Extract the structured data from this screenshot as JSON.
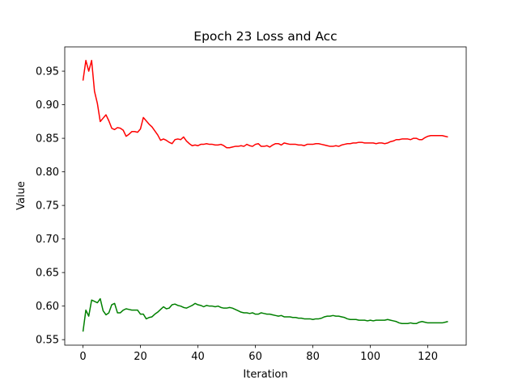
{
  "chart_data": {
    "type": "line",
    "title": "Epoch 23 Loss and Acc",
    "x_label": "Iteration",
    "y_label": "Value",
    "x": [
      0,
      1,
      2,
      3,
      4,
      5,
      6,
      7,
      8,
      9,
      10,
      11,
      12,
      13,
      14,
      15,
      16,
      17,
      18,
      19,
      20,
      21,
      22,
      23,
      24,
      25,
      26,
      27,
      28,
      29,
      30,
      31,
      32,
      33,
      34,
      35,
      36,
      37,
      38,
      39,
      40,
      41,
      42,
      43,
      44,
      45,
      46,
      47,
      48,
      49,
      50,
      51,
      52,
      53,
      54,
      55,
      56,
      57,
      58,
      59,
      60,
      61,
      62,
      63,
      64,
      65,
      66,
      67,
      68,
      69,
      70,
      71,
      72,
      73,
      74,
      75,
      76,
      77,
      78,
      79,
      80,
      81,
      82,
      83,
      84,
      85,
      86,
      87,
      88,
      89,
      90,
      91,
      92,
      93,
      94,
      95,
      96,
      97,
      98,
      99,
      100,
      101,
      102,
      103,
      104,
      105,
      106,
      107,
      108,
      109,
      110,
      111,
      112,
      113,
      114,
      115,
      116,
      117,
      118,
      119,
      120,
      121,
      122,
      123,
      124,
      125,
      126,
      127
    ],
    "series": [
      {
        "color": "#ff0000",
        "values": [
          0.936,
          0.966,
          0.95,
          0.966,
          0.92,
          0.902,
          0.875,
          0.88,
          0.885,
          0.876,
          0.865,
          0.863,
          0.866,
          0.865,
          0.862,
          0.853,
          0.856,
          0.86,
          0.86,
          0.859,
          0.864,
          0.881,
          0.876,
          0.871,
          0.867,
          0.861,
          0.855,
          0.847,
          0.849,
          0.847,
          0.844,
          0.842,
          0.848,
          0.849,
          0.848,
          0.852,
          0.846,
          0.842,
          0.839,
          0.84,
          0.839,
          0.841,
          0.841,
          0.842,
          0.841,
          0.841,
          0.84,
          0.84,
          0.841,
          0.839,
          0.836,
          0.836,
          0.837,
          0.838,
          0.838,
          0.839,
          0.838,
          0.841,
          0.839,
          0.838,
          0.841,
          0.842,
          0.838,
          0.838,
          0.839,
          0.837,
          0.84,
          0.842,
          0.842,
          0.84,
          0.843,
          0.842,
          0.841,
          0.841,
          0.841,
          0.84,
          0.84,
          0.839,
          0.841,
          0.841,
          0.841,
          0.842,
          0.842,
          0.841,
          0.84,
          0.839,
          0.838,
          0.838,
          0.839,
          0.838,
          0.84,
          0.841,
          0.842,
          0.842,
          0.843,
          0.843,
          0.844,
          0.844,
          0.843,
          0.843,
          0.843,
          0.843,
          0.842,
          0.843,
          0.843,
          0.842,
          0.843,
          0.845,
          0.846,
          0.848,
          0.848,
          0.849,
          0.849,
          0.849,
          0.848,
          0.85,
          0.85,
          0.848,
          0.848,
          0.851,
          0.853,
          0.854,
          0.854,
          0.854,
          0.854,
          0.854,
          0.853,
          0.852
        ]
      },
      {
        "color": "#008000",
        "values": [
          0.562,
          0.594,
          0.585,
          0.609,
          0.607,
          0.605,
          0.611,
          0.593,
          0.587,
          0.59,
          0.602,
          0.604,
          0.59,
          0.59,
          0.594,
          0.596,
          0.595,
          0.594,
          0.594,
          0.594,
          0.588,
          0.588,
          0.581,
          0.583,
          0.584,
          0.588,
          0.591,
          0.595,
          0.599,
          0.596,
          0.597,
          0.602,
          0.603,
          0.601,
          0.6,
          0.598,
          0.597,
          0.599,
          0.601,
          0.604,
          0.602,
          0.601,
          0.599,
          0.601,
          0.6,
          0.6,
          0.599,
          0.6,
          0.598,
          0.597,
          0.597,
          0.598,
          0.597,
          0.595,
          0.593,
          0.591,
          0.59,
          0.59,
          0.589,
          0.59,
          0.588,
          0.588,
          0.59,
          0.589,
          0.588,
          0.588,
          0.587,
          0.586,
          0.585,
          0.586,
          0.584,
          0.584,
          0.584,
          0.583,
          0.583,
          0.582,
          0.582,
          0.581,
          0.581,
          0.581,
          0.58,
          0.581,
          0.581,
          0.582,
          0.584,
          0.585,
          0.585,
          0.586,
          0.585,
          0.585,
          0.584,
          0.583,
          0.581,
          0.58,
          0.58,
          0.58,
          0.579,
          0.579,
          0.579,
          0.578,
          0.579,
          0.578,
          0.579,
          0.579,
          0.579,
          0.579,
          0.58,
          0.579,
          0.578,
          0.577,
          0.575,
          0.574,
          0.574,
          0.574,
          0.575,
          0.574,
          0.574,
          0.576,
          0.577,
          0.576,
          0.575,
          0.575,
          0.575,
          0.575,
          0.575,
          0.575,
          0.576,
          0.577
        ]
      }
    ],
    "xlim": [
      -6.35,
      133.35
    ],
    "xticks": [
      0,
      20,
      40,
      60,
      80,
      100,
      120
    ],
    "ylim": [
      0.5418,
      0.9862
    ],
    "yticks": [
      0.55,
      {
        "value": 0.6,
        "label": "0.60"
      },
      0.65,
      {
        "value": 0.7,
        "label": "0.70"
      },
      0.75,
      {
        "value": 0.8,
        "label": "0.80"
      },
      0.85,
      {
        "value": 0.9,
        "label": "0.90"
      },
      0.95
    ],
    "grid": false
  }
}
